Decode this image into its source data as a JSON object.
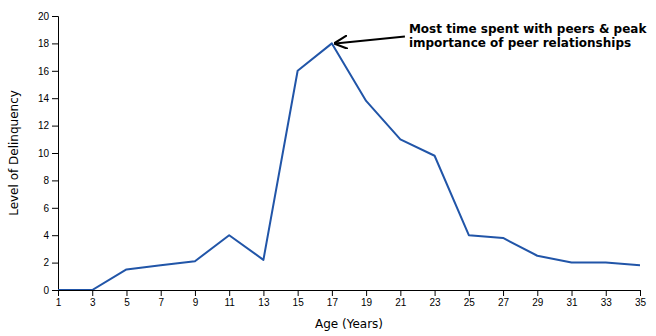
{
  "chart_data": {
    "type": "line",
    "x": [
      1,
      3,
      5,
      7,
      9,
      11,
      13,
      15,
      17,
      19,
      21,
      23,
      25,
      27,
      29,
      31,
      33,
      35
    ],
    "values": [
      0,
      0,
      1.5,
      1.8,
      2.1,
      4.0,
      2.2,
      16.0,
      18.0,
      13.8,
      11.0,
      9.8,
      4.0,
      3.8,
      2.5,
      2.0,
      2.0,
      1.8
    ],
    "color": "#2155a8",
    "xlabel": "Age (Years)",
    "ylabel": "Level of Delinquency",
    "xlim": [
      1,
      35
    ],
    "ylim": [
      0,
      20
    ],
    "xticks": [
      1,
      3,
      5,
      7,
      9,
      11,
      13,
      15,
      17,
      19,
      21,
      23,
      25,
      27,
      29,
      31,
      33,
      35
    ],
    "yticks": [
      0,
      2,
      4,
      6,
      8,
      10,
      12,
      14,
      16,
      18,
      20
    ],
    "grid": false,
    "annotations": [
      {
        "text": "Most time spent with peers & peak\nimportance of peer relationships",
        "x": 17.2,
        "y": 18.0,
        "text_x": 21.5,
        "text_y": 18.5
      }
    ]
  }
}
